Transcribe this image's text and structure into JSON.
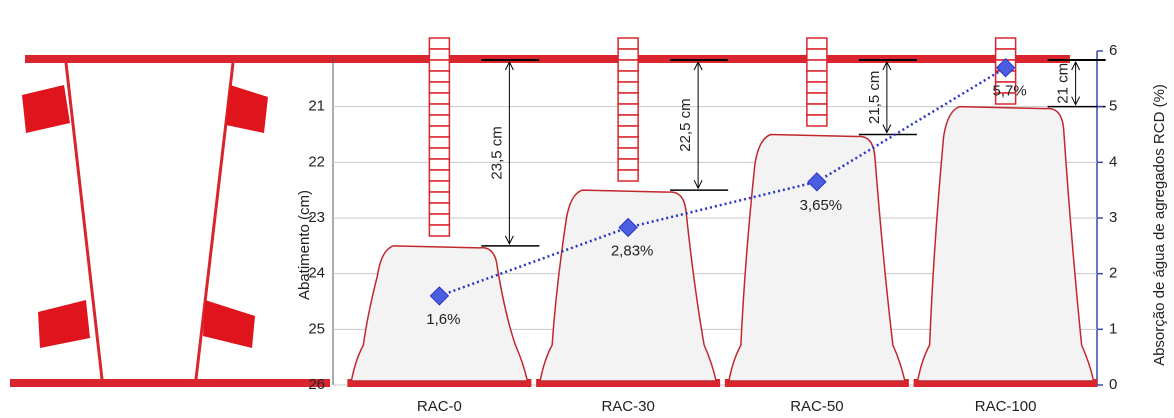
{
  "chart_data": {
    "type": "slump",
    "y_label": "Abatimento (cm)",
    "y2_label": "Absorção de água de agregados RCD (%)",
    "categories": [
      "RAC-0",
      "RAC-30",
      "RAC-50",
      "RAC-100"
    ],
    "ylim": [
      20,
      26
    ],
    "yticks": [
      21,
      22,
      23,
      24,
      25,
      26
    ],
    "y_inverted": true,
    "y2lim": [
      0,
      6
    ],
    "y2ticks": [
      0,
      1,
      2,
      3,
      4,
      5,
      6
    ],
    "grid": true,
    "series": [
      {
        "color": "#c0282d",
        "values": [
          23.5,
          22.5,
          21.5,
          21
        ],
        "value_labels": [
          "23,5 cm",
          "22,5 cm",
          "21,5 cm",
          "21 cm"
        ]
      },
      {
        "color": "#4a5fe0",
        "axis": "y2",
        "values": [
          1.6,
          2.83,
          3.65,
          5.7
        ],
        "value_labels": [
          "1,6%",
          "2,83%",
          "3,65%",
          "5,7%"
        ]
      }
    ]
  }
}
